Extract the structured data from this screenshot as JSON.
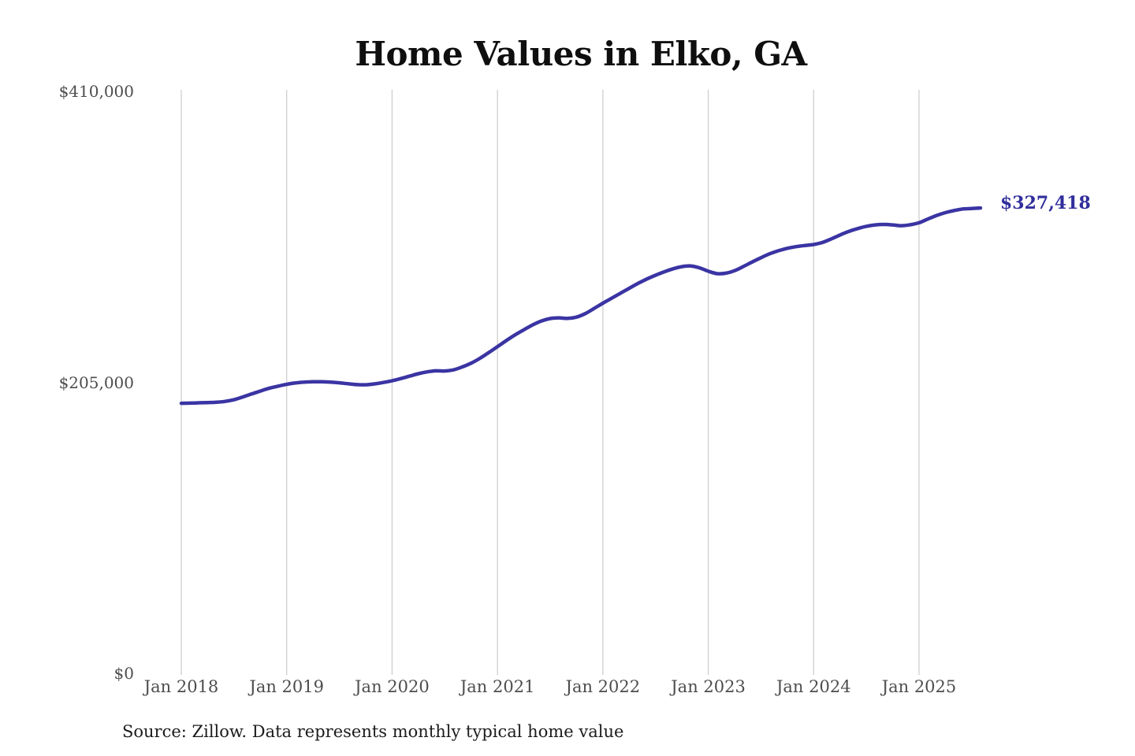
{
  "title": "Home Values in Elko, GA",
  "source_note": "Source: Zillow. Data represents monthly typical home value",
  "colors": {
    "line": "#3a34a3",
    "end_label": "#302d9c",
    "grid": "#cbcbcb",
    "axis_text": "#4d4d4d",
    "title_text": "#0f0f0f"
  },
  "chart_data": {
    "type": "line",
    "title": "Home Values in Elko, GA",
    "x_tick_labels": [
      "Jan 2018",
      "Jan 2019",
      "Jan 2020",
      "Jan 2021",
      "Jan 2022",
      "Jan 2023",
      "Jan 2024",
      "Jan 2025"
    ],
    "y_ticks": [
      0,
      205000,
      410000
    ],
    "y_tick_labels": [
      "$0",
      "$205,000",
      "$410,000"
    ],
    "ylim": [
      0,
      410000
    ],
    "grid": "vertical-only",
    "legend": false,
    "end_label": "$327,418",
    "end_value": 327418,
    "series": [
      {
        "name": "Monthly typical home value",
        "start": "Jan 2018",
        "end": "Aug 2025",
        "frequency": "monthly",
        "values": [
          190000,
          190100,
          190300,
          190500,
          190700,
          191300,
          192500,
          194400,
          196500,
          198600,
          200500,
          202000,
          203300,
          204300,
          204900,
          205100,
          205100,
          204900,
          204400,
          203700,
          203100,
          203000,
          203600,
          204600,
          205800,
          207400,
          209100,
          210800,
          212100,
          212800,
          212700,
          213500,
          215600,
          218200,
          221600,
          225600,
          229800,
          234100,
          238100,
          241700,
          245100,
          247900,
          249600,
          250100,
          249700,
          250600,
          253100,
          256700,
          260400,
          263900,
          267400,
          270900,
          274300,
          277400,
          280100,
          282500,
          284600,
          286100,
          286600,
          285300,
          282900,
          281200,
          281500,
          283300,
          286200,
          289400,
          292400,
          295200,
          297300,
          299000,
          300200,
          301000,
          301700,
          303100,
          305600,
          308400,
          310900,
          312900,
          314500,
          315500,
          315800,
          315500,
          314900,
          315600,
          317000,
          319600,
          322100,
          324100,
          325600,
          326700,
          327000,
          327418
        ]
      }
    ]
  }
}
